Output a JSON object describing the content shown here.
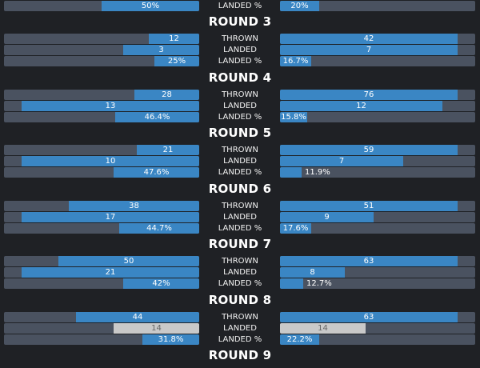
{
  "labels": {
    "thrown": "THROWN",
    "landed": "LANDED",
    "landed_pct": "LANDED %"
  },
  "colors": {
    "background": "#1f2125",
    "track": "#4a5260",
    "bar": "#3a86c4",
    "tie": "#c9c9c9"
  },
  "top_partial": {
    "left": "50%",
    "right": "20%",
    "left_frac": 0.5,
    "right_frac": 0.2
  },
  "rounds": [
    {
      "title": "ROUND 3",
      "thrown": {
        "left": "12",
        "right": "42",
        "left_frac": 0.26,
        "right_frac": 0.91
      },
      "landed": {
        "left": "3",
        "right": "7",
        "left_frac": 0.39,
        "right_frac": 0.91
      },
      "pct": {
        "left": "25%",
        "right": "16.7%",
        "left_frac": 0.23,
        "right_frac": 0.16
      }
    },
    {
      "title": "ROUND 4",
      "thrown": {
        "left": "28",
        "right": "76",
        "left_frac": 0.33,
        "right_frac": 0.91
      },
      "landed": {
        "left": "13",
        "right": "12",
        "left_frac": 0.91,
        "right_frac": 0.83
      },
      "pct": {
        "left": "46.4%",
        "right": "15.8%",
        "left_frac": 0.43,
        "right_frac": 0.14
      }
    },
    {
      "title": "ROUND 5",
      "thrown": {
        "left": "21",
        "right": "59",
        "left_frac": 0.32,
        "right_frac": 0.91
      },
      "landed": {
        "left": "10",
        "right": "7",
        "left_frac": 0.91,
        "right_frac": 0.63
      },
      "pct": {
        "left": "47.6%",
        "right": "11.9%",
        "left_frac": 0.44,
        "right_frac": 0.11
      }
    },
    {
      "title": "ROUND 6",
      "thrown": {
        "left": "38",
        "right": "51",
        "left_frac": 0.67,
        "right_frac": 0.91
      },
      "landed": {
        "left": "17",
        "right": "9",
        "left_frac": 0.91,
        "right_frac": 0.48
      },
      "pct": {
        "left": "44.7%",
        "right": "17.6%",
        "left_frac": 0.41,
        "right_frac": 0.16
      }
    },
    {
      "title": "ROUND 7",
      "thrown": {
        "left": "50",
        "right": "63",
        "left_frac": 0.72,
        "right_frac": 0.91
      },
      "landed": {
        "left": "21",
        "right": "8",
        "left_frac": 0.91,
        "right_frac": 0.33
      },
      "pct": {
        "left": "42%",
        "right": "12.7%",
        "left_frac": 0.39,
        "right_frac": 0.12
      }
    },
    {
      "title": "ROUND 8",
      "thrown": {
        "left": "44",
        "right": "63",
        "left_frac": 0.63,
        "right_frac": 0.91
      },
      "landed": {
        "left": "14",
        "right": "14",
        "left_frac": 0.44,
        "right_frac": 0.44,
        "tie": true
      },
      "pct": {
        "left": "31.8%",
        "right": "22.2%",
        "left_frac": 0.29,
        "right_frac": 0.2
      }
    }
  ],
  "bottom_title": "ROUND 9"
}
